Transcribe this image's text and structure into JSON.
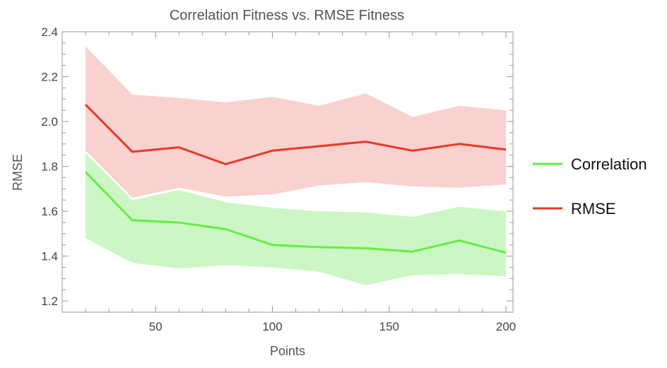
{
  "chart_data": {
    "type": "line",
    "title": "Correlation Fitness vs. RMSE Fitness",
    "xlabel": "Points",
    "ylabel": "RMSE",
    "xlim": [
      10,
      203
    ],
    "ylim": [
      1.15,
      2.4
    ],
    "x_ticks": [
      50,
      100,
      150,
      200
    ],
    "y_ticks": [
      1.2,
      1.4,
      1.6,
      1.8,
      2.0,
      2.2,
      2.4
    ],
    "x_tick_labels": [
      "50",
      "100",
      "150",
      "200"
    ],
    "y_tick_labels": [
      "1.2",
      "1.4",
      "1.6",
      "1.8",
      "2.0",
      "2.2",
      "2.4"
    ],
    "x": [
      20,
      40,
      60,
      80,
      100,
      120,
      140,
      160,
      180,
      200
    ],
    "series": [
      {
        "name": "Correlation",
        "color": "#66ee44",
        "band_color": "#ccf7c4",
        "values": [
          1.775,
          1.56,
          1.55,
          1.52,
          1.45,
          1.44,
          1.435,
          1.42,
          1.47,
          1.415
        ],
        "lower": [
          1.48,
          1.37,
          1.345,
          1.36,
          1.35,
          1.33,
          1.27,
          1.315,
          1.32,
          1.31
        ],
        "upper": [
          1.86,
          1.65,
          1.695,
          1.64,
          1.615,
          1.6,
          1.595,
          1.575,
          1.62,
          1.6
        ]
      },
      {
        "name": "RMSE",
        "color": "#e53a2a",
        "band_color": "#f8c6c2",
        "values": [
          2.075,
          1.865,
          1.885,
          1.81,
          1.87,
          1.89,
          1.91,
          1.87,
          1.9,
          1.875
        ],
        "lower": [
          1.87,
          1.66,
          1.705,
          1.665,
          1.675,
          1.715,
          1.73,
          1.71,
          1.705,
          1.72
        ],
        "upper": [
          2.335,
          2.12,
          2.105,
          2.085,
          2.11,
          2.07,
          2.125,
          2.02,
          2.07,
          2.05
        ]
      }
    ],
    "legend_position": "right"
  }
}
